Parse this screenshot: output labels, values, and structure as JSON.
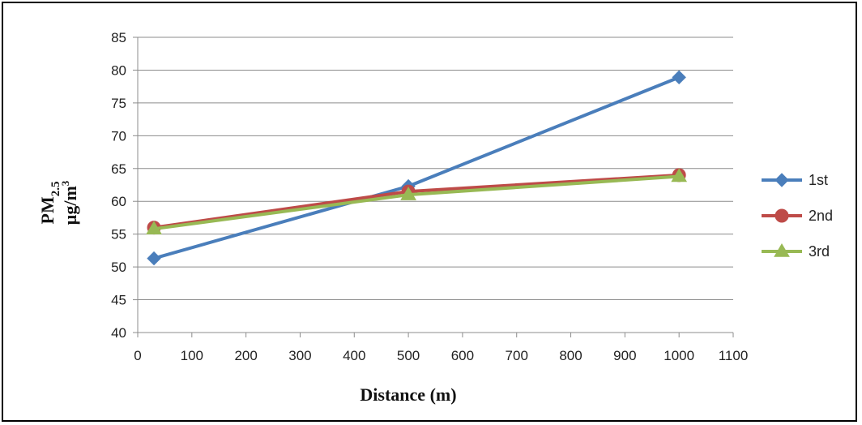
{
  "chart_data": {
    "type": "line",
    "xlabel": "Distance (m)",
    "ylabel": "PM2.5 μg/m³",
    "ylabel_parts": {
      "pm": "PM",
      "sub": "2.5",
      "unit": "µg/m",
      "sup": "3"
    },
    "xlim": [
      0,
      1100
    ],
    "ylim": [
      40,
      85
    ],
    "xticks": [
      0,
      100,
      200,
      300,
      400,
      500,
      600,
      700,
      800,
      900,
      1000,
      1100
    ],
    "yticks": [
      40,
      45,
      50,
      55,
      60,
      65,
      70,
      75,
      80,
      85
    ],
    "grid": "horizontal",
    "legend_position": "right",
    "series": [
      {
        "name": "1st",
        "marker": "diamond",
        "color": "#4A7EBB",
        "points": [
          {
            "x": 30,
            "y": 51.3
          },
          {
            "x": 500,
            "y": 62.3
          },
          {
            "x": 1000,
            "y": 78.9
          }
        ]
      },
      {
        "name": "2nd",
        "marker": "circle",
        "color": "#BE4B48",
        "points": [
          {
            "x": 30,
            "y": 56.0
          },
          {
            "x": 500,
            "y": 61.5
          },
          {
            "x": 1000,
            "y": 64.0
          }
        ]
      },
      {
        "name": "3rd",
        "marker": "triangle",
        "color": "#98B954",
        "points": [
          {
            "x": 30,
            "y": 55.8
          },
          {
            "x": 500,
            "y": 61.0
          },
          {
            "x": 1000,
            "y": 63.8
          }
        ]
      }
    ]
  }
}
